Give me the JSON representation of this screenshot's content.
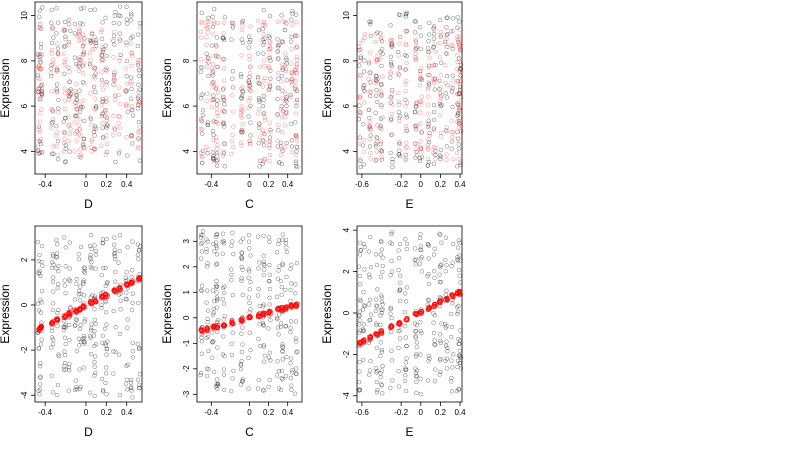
{
  "chart_data": [
    {
      "type": "scatter",
      "panel": "top-left",
      "xlabel": "D",
      "ylabel": "Expression",
      "xlim": [
        -0.5,
        0.55
      ],
      "ylim": [
        3.0,
        10.6
      ],
      "xticks": [
        -0.4,
        0.0,
        0.2,
        0.4
      ],
      "yticks": [
        4,
        6,
        8,
        10
      ],
      "xcats": [
        -0.46,
        -0.44,
        -0.33,
        -0.28,
        -0.21,
        -0.16,
        -0.1,
        -0.06,
        -0.02,
        0.05,
        0.09,
        0.16,
        0.2,
        0.28,
        0.33,
        0.4,
        0.45,
        0.52
      ],
      "xspread": 0.012,
      "points_black": {
        "count": 220,
        "ymin": 3.5,
        "ymax": 10.4
      },
      "points_red": {
        "count": 240,
        "ymin": 3.8,
        "ymax": 9.5
      }
    },
    {
      "type": "scatter",
      "panel": "top-center",
      "xlabel": "C",
      "ylabel": "Expression",
      "xlim": [
        -0.55,
        0.55
      ],
      "ylim": [
        3.0,
        10.6
      ],
      "xticks": [
        -0.4,
        0.0,
        0.2,
        0.4
      ],
      "yticks": [
        4,
        6,
        8
      ],
      "xcats": [
        -0.5,
        -0.44,
        -0.38,
        -0.34,
        -0.27,
        -0.18,
        -0.08,
        0.0,
        0.1,
        0.15,
        0.21,
        0.3,
        0.34,
        0.38,
        0.44,
        0.49
      ],
      "xspread": 0.012,
      "points_black": {
        "count": 200,
        "ymin": 3.2,
        "ymax": 10.3
      },
      "points_red": {
        "count": 230,
        "ymin": 3.5,
        "ymax": 9.8
      }
    },
    {
      "type": "scatter",
      "panel": "top-right",
      "xlabel": "E",
      "ylabel": "Expression",
      "xlim": [
        -0.65,
        0.42
      ],
      "ylim": [
        3.0,
        10.6
      ],
      "xticks": [
        -0.6,
        -0.2,
        0.0,
        0.2,
        0.4
      ],
      "yticks": [
        4,
        6,
        8,
        10
      ],
      "xcats": [
        -0.62,
        -0.58,
        -0.52,
        -0.45,
        -0.4,
        -0.3,
        -0.22,
        -0.15,
        -0.05,
        0.0,
        0.08,
        0.14,
        0.2,
        0.26,
        0.32,
        0.38,
        0.4
      ],
      "xspread": 0.012,
      "points_black": {
        "count": 230,
        "ymin": 3.3,
        "ymax": 10.2
      },
      "points_red": {
        "count": 240,
        "ymin": 3.6,
        "ymax": 9.4
      }
    },
    {
      "type": "scatter",
      "panel": "bottom-left",
      "xlabel": "D",
      "ylabel": "Expression",
      "xlim": [
        -0.5,
        0.55
      ],
      "ylim": [
        -4.3,
        3.5
      ],
      "xticks": [
        -0.4,
        0.0,
        0.2,
        0.4
      ],
      "yticks": [
        -4,
        -2,
        0,
        2
      ],
      "xcats": [
        -0.46,
        -0.44,
        -0.33,
        -0.28,
        -0.21,
        -0.16,
        -0.1,
        -0.06,
        -0.02,
        0.05,
        0.09,
        0.16,
        0.2,
        0.28,
        0.33,
        0.4,
        0.45,
        0.52
      ],
      "xspread": 0.012,
      "points_black": {
        "count": 300,
        "ymin": -4.1,
        "ymax": 3.1
      },
      "trend": {
        "x": [
          -0.45,
          0.52
        ],
        "y": [
          -1.05,
          1.15
        ]
      }
    },
    {
      "type": "scatter",
      "panel": "bottom-center",
      "xlabel": "C",
      "ylabel": "Expression",
      "xlim": [
        -0.55,
        0.55
      ],
      "ylim": [
        -3.3,
        3.6
      ],
      "xticks": [
        -0.4,
        0.0,
        0.2,
        0.4
      ],
      "yticks": [
        -3,
        -2,
        -1,
        0,
        1,
        2,
        3
      ],
      "xcats": [
        -0.5,
        -0.44,
        -0.38,
        -0.34,
        -0.27,
        -0.18,
        -0.08,
        0.0,
        0.1,
        0.15,
        0.21,
        0.3,
        0.34,
        0.38,
        0.44,
        0.49
      ],
      "xspread": 0.012,
      "points_black": {
        "count": 280,
        "ymin": -3.0,
        "ymax": 3.4
      },
      "trend": {
        "x": [
          -0.5,
          0.49
        ],
        "y": [
          -0.5,
          0.5
        ]
      }
    },
    {
      "type": "scatter",
      "panel": "bottom-right",
      "xlabel": "E",
      "ylabel": "Expression",
      "xlim": [
        -0.65,
        0.42
      ],
      "ylim": [
        -4.3,
        4.2
      ],
      "xticks": [
        -0.6,
        -0.2,
        0.0,
        0.2,
        0.4
      ],
      "yticks": [
        -4,
        -2,
        0,
        2,
        4
      ],
      "xcats": [
        -0.62,
        -0.58,
        -0.52,
        -0.45,
        -0.4,
        -0.3,
        -0.22,
        -0.15,
        -0.05,
        0.0,
        0.08,
        0.14,
        0.2,
        0.26,
        0.32,
        0.38,
        0.4
      ],
      "xspread": 0.012,
      "points_black": {
        "count": 300,
        "ymin": -4.0,
        "ymax": 3.9
      },
      "trend": {
        "x": [
          -0.6,
          0.4
        ],
        "y": [
          -1.4,
          1.0
        ]
      }
    }
  ],
  "style": {
    "black_point_color": "#000000",
    "red_point_color": "#ff0000",
    "frame_color": "#000000"
  }
}
